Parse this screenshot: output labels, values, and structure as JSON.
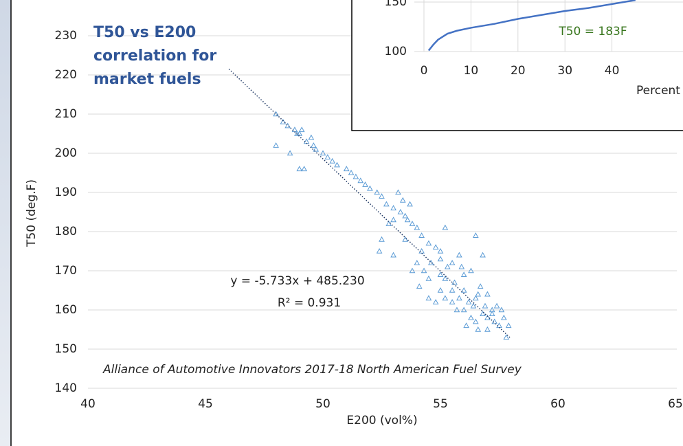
{
  "chart_data": [
    {
      "type": "scatter",
      "title_lines": [
        "T50 vs E200",
        "correlation for",
        "market fuels"
      ],
      "x_label": "E200 (vol%)",
      "y_label": "T50 (deg.F)",
      "note": "Alliance of Automotive Innovators 2017-18 North American Fuel Survey",
      "equation": "y = -5.733x + 485.230",
      "r_squared": "R² = 0.931",
      "xlim": [
        40,
        65
      ],
      "xticks": [
        40,
        45,
        50,
        55,
        60,
        65
      ],
      "ylim": [
        140,
        230
      ],
      "yticks": [
        140,
        150,
        160,
        170,
        180,
        190,
        200,
        210,
        220,
        230
      ],
      "grid": true,
      "color": "#5b9bd5",
      "x": [
        48,
        48,
        48.3,
        48.5,
        48.8,
        48.9,
        49,
        49.1,
        49.3,
        49.5,
        49.6,
        49,
        49.2,
        48.6,
        49.7,
        50,
        50.2,
        50.4,
        50.6,
        51,
        51.2,
        51.4,
        51.6,
        51.8,
        52,
        52.3,
        52.5,
        52.7,
        53,
        53.2,
        53.3,
        53.5,
        53.6,
        53.8,
        54,
        53,
        52.8,
        53.4,
        53.7,
        52.5,
        52.4,
        53,
        53.5,
        54.2,
        54.5,
        54.8,
        55,
        55.2,
        54.3,
        54.6,
        55,
        55.3,
        55.5,
        55.8,
        55.2,
        55.6,
        56,
        56.3,
        56.5,
        56.8,
        55,
        55.2,
        55.5,
        55.8,
        56,
        56.2,
        56.5,
        56.7,
        57,
        57.2,
        56,
        56.3,
        56.5,
        56.8,
        57,
        57.3,
        57.5,
        57.7,
        57.9,
        57.8,
        56.6,
        57,
        57.4,
        56.4,
        56.9,
        55.5,
        55,
        54.5,
        54,
        54.2,
        55.7,
        56.1,
        57.2,
        57.6,
        56.6,
        55.9,
        54.8,
        54.5,
        53.8,
        54.1
      ],
      "y": [
        210,
        202,
        208,
        207,
        206,
        205,
        205,
        206,
        203,
        204,
        202,
        196,
        196,
        200,
        201,
        200,
        199,
        198,
        197,
        196,
        195,
        194,
        193,
        192,
        191,
        190,
        189,
        187,
        186,
        190,
        185,
        184,
        183,
        182,
        181,
        183,
        182,
        188,
        187,
        178,
        175,
        174,
        178,
        179,
        177,
        176,
        175,
        181,
        170,
        172,
        173,
        171,
        172,
        174,
        168,
        167,
        169,
        170,
        179,
        174,
        165,
        163,
        165,
        163,
        165,
        162,
        163,
        166,
        164,
        160,
        160,
        158,
        157,
        159,
        158,
        157,
        156,
        158,
        156,
        153,
        155,
        155,
        161,
        161,
        161,
        162,
        169,
        168,
        172,
        175,
        160,
        156,
        159,
        160,
        164,
        171,
        162,
        163,
        170,
        166
      ],
      "trendline": {
        "x": [
          46,
          58
        ],
        "y": [
          221.5,
          152.7
        ]
      }
    },
    {
      "type": "line",
      "annotation": "T50 = 183F",
      "x_label": "Percent Evaporated",
      "xlim": [
        0,
        50
      ],
      "xticks": [
        0,
        10,
        20,
        30,
        40
      ],
      "ylim": [
        100,
        150
      ],
      "yticks": [
        100,
        150
      ],
      "grid": true,
      "color": "#4472c4",
      "x": [
        1,
        2,
        3,
        5,
        7,
        10,
        15,
        20,
        25,
        30,
        35,
        40,
        45
      ],
      "y": [
        101,
        107,
        112,
        118,
        121,
        124,
        128,
        133,
        137,
        141,
        144,
        148,
        152
      ]
    }
  ]
}
